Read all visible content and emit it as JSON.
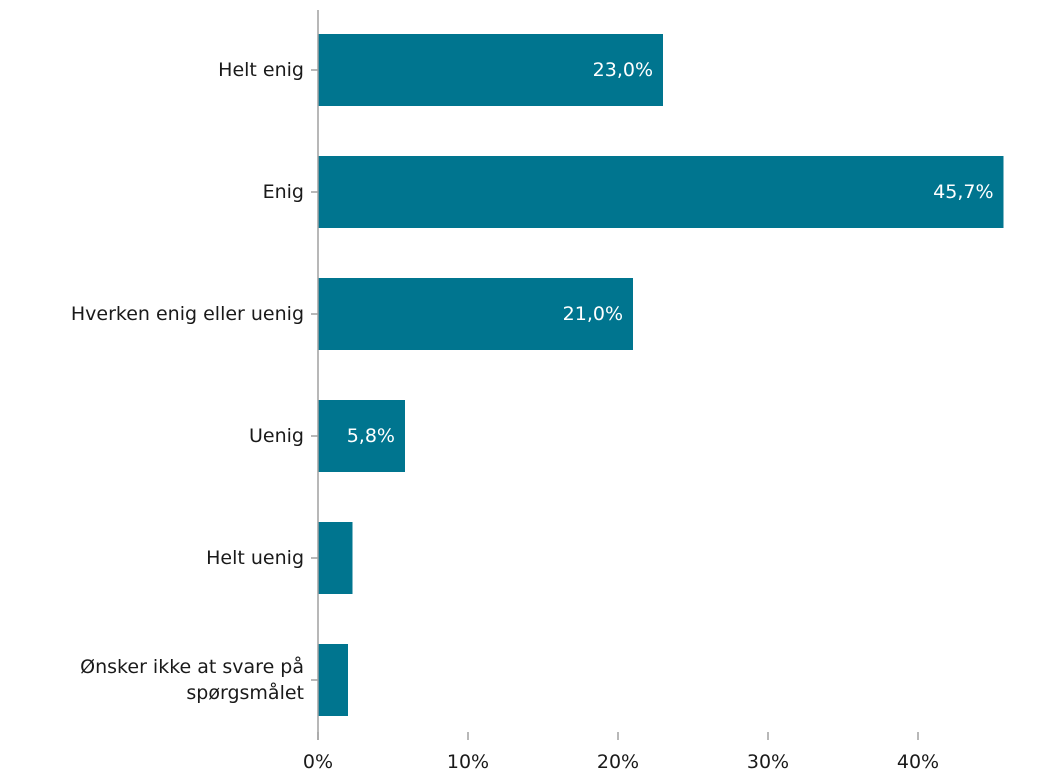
{
  "chart_data": {
    "type": "bar",
    "orientation": "horizontal",
    "title": "",
    "xlabel": "",
    "ylabel": "",
    "categories": [
      [
        "Helt enig"
      ],
      [
        "Enig"
      ],
      [
        "Hverken enig eller uenig"
      ],
      [
        "Uenig"
      ],
      [
        "Helt uenig"
      ],
      [
        "Ønsker ikke at svare på",
        "spørgsmålet"
      ]
    ],
    "values": [
      23.0,
      45.7,
      21.0,
      5.8,
      2.3,
      2.0
    ],
    "data_labels": [
      "23,0%",
      "45,7%",
      "21,0%",
      "5,8%",
      "",
      ""
    ],
    "xlim": [
      0,
      48
    ],
    "xticks": [
      0,
      10,
      20,
      30,
      40
    ],
    "xtick_labels": [
      "0%",
      "10%",
      "20%",
      "30%",
      "40%"
    ],
    "grid": false,
    "legend": "none",
    "bar_color": "#00758f"
  }
}
